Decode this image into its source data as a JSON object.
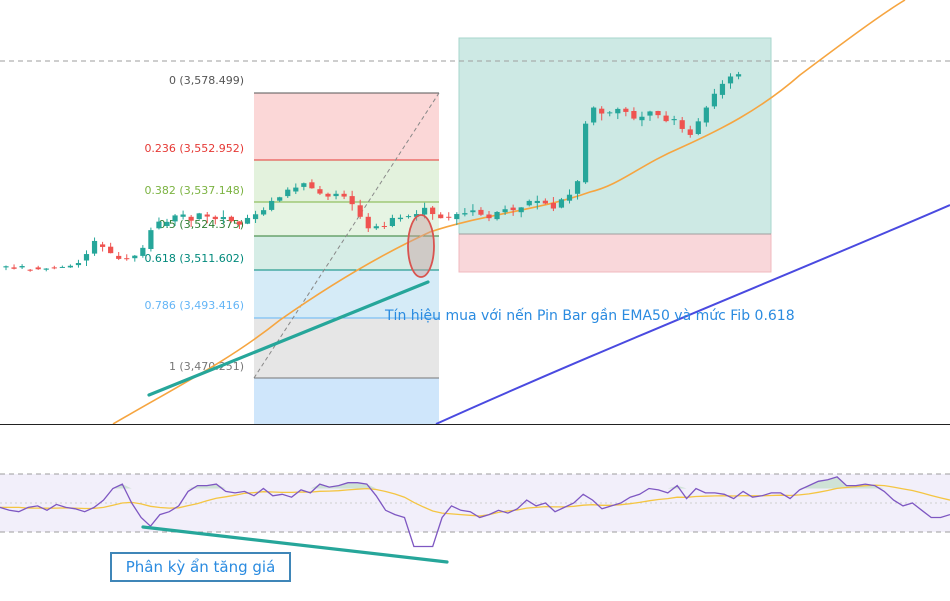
{
  "chart_data": {
    "type": "candlestick",
    "fib_levels": [
      {
        "ratio": "0",
        "price": "3,578.499",
        "label": "0 (3,578.499)",
        "color": "#555555"
      },
      {
        "ratio": "0.236",
        "price": "3,552.952",
        "label": "0.236 (3,552.952)",
        "color": "#e53935"
      },
      {
        "ratio": "0.382",
        "price": "3,537.148",
        "label": "0.382 (3,537.148)",
        "color": "#7cb342"
      },
      {
        "ratio": "0.5",
        "price": "3,524.375",
        "label": "0.5 (3,524.375)",
        "color": "#2e7d32"
      },
      {
        "ratio": "0.618",
        "price": "3,511.602",
        "label": "0.618 (3,511.602)",
        "color": "#00897b"
      },
      {
        "ratio": "0.786",
        "price": "3,493.416",
        "label": "0.786 (3,493.416)",
        "color": "#64b5f6"
      },
      {
        "ratio": "1",
        "price": "3,470.251",
        "label": "1 (3,470.251)",
        "color": "#777777"
      }
    ],
    "annotations": {
      "buy_signal": "Tín hiệu mua với nến Pin Bar gần EMA50 và mức Fib 0.618",
      "divergence": "Phân kỳ ẩn tăng giá"
    },
    "candles_seq": [
      [
        62,
        0.5,
        0.3,
        1.2,
        0.8
      ],
      [
        62,
        -0.6,
        1.3,
        0.3,
        1
      ],
      [
        62,
        0.6,
        0.8,
        0.7,
        1.3
      ],
      [
        61,
        -0.4,
        0.3,
        0.5,
        0.7
      ],
      [
        62,
        -0.8,
        0.7,
        0.3,
        0.8
      ],
      [
        61,
        0.5,
        0.2,
        0.7,
        1.5
      ],
      [
        62,
        -0.3,
        0.7,
        0.5,
        1.3
      ],
      [
        62,
        0.2,
        0.6,
        0.1,
        0.8
      ],
      [
        62,
        0.7,
        0.6,
        0.2,
        1.3
      ],
      [
        63,
        0.9,
        1.4,
        1.1,
        0.5
      ],
      [
        65,
        2.8,
        1.6,
        2.4,
        0.6
      ],
      [
        68,
        5.5,
        1.5,
        1,
        0.9
      ],
      [
        72,
        -1.1,
        1.1,
        2,
        0.9
      ],
      [
        71,
        -2.8,
        1.7,
        0.1,
        1.8
      ],
      [
        67,
        -1.3,
        1.7,
        0.5,
        1.4
      ],
      [
        66,
        -0.4,
        1.7,
        0.7,
        2.3
      ],
      [
        66,
        1.1,
        0.3,
        1.5,
        1.2
      ],
      [
        67,
        3.5,
        1.2,
        0.8,
        2.5
      ],
      [
        70,
        8.2,
        1.1,
        1.1,
        1.4
      ],
      [
        79,
        2.9,
        1.8,
        0.5,
        0.8
      ],
      [
        80,
        1.8,
        1.3,
        0.6,
        2.1
      ],
      [
        82,
        2.6,
        0.6,
        2,
        1.2
      ],
      [
        84,
        1,
        1.7,
        1.2,
        1.6
      ],
      [
        84,
        -1.7,
        0.8,
        2.7,
        1.9
      ],
      [
        83,
        2.5,
        0.2,
        0.3,
        1.3
      ],
      [
        85,
        -0.9,
        1.1,
        2.9,
        1.4
      ],
      [
        84,
        -1,
        0.6,
        2.3,
        1.5
      ],
      [
        83,
        0.9,
        2.9,
        2.1,
        1.6
      ],
      [
        84,
        -1.9,
        0.5,
        0.6,
        1.5
      ],
      [
        82,
        -1.4,
        0.1,
        1.9,
        1.3
      ],
      [
        81,
        2.5,
        1.4,
        0.2,
        2.1
      ],
      [
        83,
        2.1,
        1.5,
        1.7,
        2.3
      ],
      [
        85,
        1.9,
        1.2,
        0.6,
        2.4
      ],
      [
        87,
        3.9,
        1.5,
        0.6,
        1
      ],
      [
        91,
        1.5,
        0.2,
        0.6,
        2.1
      ],
      [
        93,
        2.8,
        1,
        0.8,
        1
      ],
      [
        95,
        1.7,
        1.8,
        1.1,
        1.9
      ],
      [
        97,
        1.6,
        0.3,
        1.5,
        1.5
      ],
      [
        99,
        -2.6,
        1.3,
        0.2,
        1.3
      ],
      [
        96,
        -1.9,
        1.4,
        0.6,
        2.4
      ],
      [
        94,
        -1.2,
        0.5,
        1.5,
        1.3
      ],
      [
        93,
        1,
        1.4,
        1.4,
        0.8
      ],
      [
        94,
        -1.2,
        1.4,
        1.1,
        0.8
      ],
      [
        93,
        -3.5,
        2.3,
        2.8,
        0.7
      ],
      [
        89,
        -5,
        2.4,
        0.9,
        0.8
      ],
      [
        84,
        -5,
        1.6,
        1.6,
        1.8
      ],
      [
        79,
        0.9,
        1.1,
        0.7,
        2
      ],
      [
        80,
        -0.3,
        1.8,
        1,
        2.1
      ],
      [
        80,
        3.5,
        1.4,
        0.5,
        0.8
      ],
      [
        83,
        0.6,
        1.4,
        1.1,
        2.3
      ],
      [
        84,
        0.3,
        0.7,
        0.8,
        2.5
      ],
      [
        84,
        1.2,
        1.7,
        1.7,
        1.3
      ],
      [
        85,
        2.9,
        2.2,
        1.7,
        1.4
      ],
      [
        88,
        -2.8,
        0.7,
        2.5,
        2.2
      ],
      [
        85,
        -1.6,
        1,
        0.1,
        1.6
      ],
      [
        84,
        -0.4,
        2,
        1.2,
        1.9
      ],
      [
        83,
        2.2,
        0.8,
        2.6,
        1.7
      ],
      [
        85,
        0.6,
        2.2,
        0.8,
        2.3
      ],
      [
        86,
        0.8,
        2.7,
        1.6,
        2
      ],
      [
        87,
        -2.1,
        1.2,
        0.5,
        2.6
      ],
      [
        85,
        -1.6,
        1.5,
        1.3,
        1.9
      ],
      [
        83,
        3.1,
        0.4,
        0.6,
        1.1
      ],
      [
        86,
        1.3,
        1.6,
        1.2,
        2.4
      ],
      [
        88,
        -1.1,
        1.3,
        2.5,
        1.3
      ],
      [
        86,
        2.1,
        0.1,
        2.2,
        2.9
      ],
      [
        89,
        1.9,
        0.6,
        0.5,
        2.7
      ],
      [
        90,
        0.9,
        2.3,
        2.8,
        2.1
      ],
      [
        91,
        -1.2,
        1,
        0.4,
        1.2
      ],
      [
        90,
        -2.4,
        2.6,
        1.1,
        2.8
      ],
      [
        88,
        3.6,
        0.6,
        0.3,
        1
      ],
      [
        91,
        2.6,
        2.3,
        1.2,
        1.4
      ],
      [
        94,
        5.5,
        0.5,
        2.5,
        0.9
      ],
      [
        99,
        25.5,
        1.1,
        0.7,
        3.5
      ],
      [
        125,
        6.5,
        0.5,
        1.2,
        1.6
      ],
      [
        131,
        -2.1,
        1.1,
        3,
        0.7
      ],
      [
        129,
        0.4,
        0.6,
        1.3,
        2.3
      ],
      [
        129,
        1.9,
        0.6,
        2.5,
        0.5
      ],
      [
        131,
        -1.4,
        0.7,
        1.9,
        1.2
      ],
      [
        130,
        -3.3,
        1.6,
        0.7,
        2
      ],
      [
        126,
        1.5,
        2.2,
        2.6,
        0.5
      ],
      [
        128,
        1.8,
        0.3,
        2.3,
        0.8
      ],
      [
        130,
        -1.8,
        0.1,
        1.4,
        1.1
      ],
      [
        128,
        -2.4,
        1.9,
        0.5,
        1.6
      ],
      [
        126,
        0.5,
        1.4,
        2.1,
        2.1
      ],
      [
        126,
        -3.8,
        1.4,
        1.6,
        0.9
      ],
      [
        122,
        -2.4,
        1.6,
        1.2,
        1
      ],
      [
        120,
        5.5,
        1.4,
        0.5,
        0.6
      ],
      [
        125,
        6.5,
        0.7,
        1.8,
        1.6
      ],
      [
        132,
        5.5,
        2.1,
        1.1,
        2.2
      ],
      [
        137,
        4.8,
        1.6,
        1.6,
        1.9
      ],
      [
        142,
        3,
        1.4,
        2.3,
        0.6
      ],
      [
        145,
        1,
        1,
        1.2,
        1.4
      ]
    ],
    "rsi_seq": [
      47,
      45,
      44,
      47,
      48,
      45,
      49,
      47,
      46,
      44,
      47,
      52,
      60,
      63,
      50,
      40,
      34,
      42,
      44,
      48,
      58,
      62,
      62,
      63,
      58,
      57,
      58,
      55,
      60,
      55,
      56,
      54,
      59,
      57,
      63,
      61,
      62,
      64,
      64,
      63,
      55,
      45,
      42,
      40,
      20,
      20,
      20,
      40,
      48,
      45,
      44,
      40,
      42,
      45,
      43,
      46,
      52,
      48,
      50,
      44,
      47,
      50,
      56,
      52,
      46,
      48,
      50,
      54,
      56,
      60,
      59,
      57,
      62,
      53,
      60,
      57,
      57,
      56,
      53,
      58,
      54,
      55,
      57,
      57,
      53,
      59,
      62,
      65,
      66,
      68,
      62,
      62,
      63,
      62,
      58,
      52,
      48,
      50,
      45,
      40,
      40,
      42
    ],
    "rsi_ma_seq": [
      47,
      47,
      47,
      46.5,
      46.5,
      46.4,
      46.5,
      46.6,
      46.5,
      46.2,
      46.3,
      47,
      48.5,
      50,
      50.4,
      49.4,
      47.7,
      46.9,
      46.5,
      46.7,
      48.2,
      49.6,
      51.5,
      53.3,
      54.3,
      55.4,
      56.7,
      57.2,
      57.8,
      57.6,
      57.3,
      57.3,
      57.6,
      57.5,
      58.1,
      58.2,
      58.5,
      59,
      59.5,
      59.9,
      59.3,
      57.9,
      56.2,
      54,
      50.4,
      47.3,
      44.5,
      43,
      42.5,
      42,
      41.5,
      41,
      42,
      43.5,
      44.5,
      45.2,
      46.5,
      47,
      47.5,
      47.3,
      47.3,
      47.7,
      48.5,
      48.8,
      48.4,
      48.4,
      48.8,
      49.5,
      50.4,
      51.5,
      52.4,
      53,
      54,
      53.9,
      54.5,
      54.7,
      54.9,
      55,
      54.8,
      55.1,
      55,
      55,
      55.2,
      55.4,
      55.2,
      55.6,
      56.3,
      57.4,
      58.6,
      60.1,
      60.7,
      61.3,
      61.9,
      62.3,
      62,
      61,
      59.7,
      58.6,
      57,
      55.2,
      53.5,
      52
    ]
  }
}
